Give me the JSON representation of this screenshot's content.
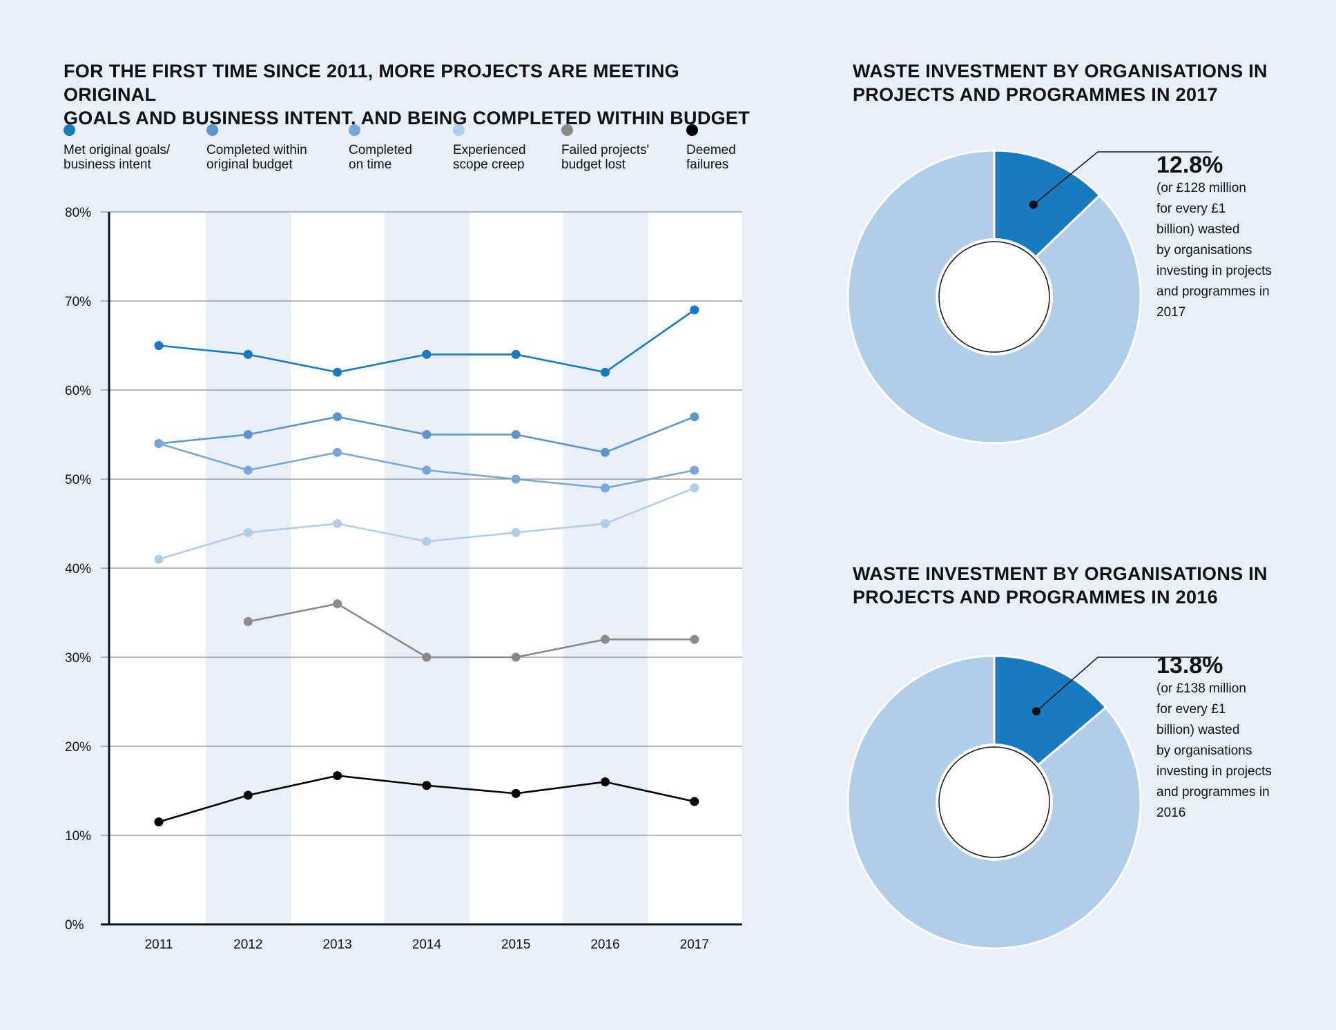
{
  "line_chart": {
    "title": "FOR THE FIRST TIME SINCE 2011, MORE PROJECTS ARE MEETING ORIGINAL\nGOALS AND BUSINESS INTENT, AND BEING COMPLETED WITHIN BUDGET"
  },
  "donut_2017": {
    "title": "WASTE INVESTMENT BY ORGANISATIONS IN\nPROJECTS AND PROGRAMMES IN 2017",
    "percent_label": "12.8%",
    "description": "(or £128 million\nfor every £1\nbillion) wasted\nby organisations\ninvesting in projects\nand programmes in\n2017"
  },
  "donut_2016": {
    "title": "WASTE INVESTMENT BY ORGANISATIONS IN\nPROJECTS AND PROGRAMMES IN 2016",
    "percent_label": "13.8%",
    "description": "(or £138 million\nfor every £1\nbillion) wasted\nby organisations\ninvesting in projects\nand programmes in\n2016"
  },
  "chart_data": [
    {
      "type": "line",
      "title": "FOR THE FIRST TIME SINCE 2011, MORE PROJECTS ARE MEETING ORIGINAL GOALS AND BUSINESS INTENT, AND BEING COMPLETED WITHIN BUDGET",
      "xlabel": "",
      "ylabel": "",
      "x": [
        "2011",
        "2012",
        "2013",
        "2014",
        "2015",
        "2016",
        "2017"
      ],
      "ylim": [
        0,
        80
      ],
      "yticks": [
        "0%",
        "10%",
        "20%",
        "30%",
        "40%",
        "50%",
        "60%",
        "70%",
        "80%"
      ],
      "grid": true,
      "legend_position": "top",
      "series": [
        {
          "name": "Met original goals/\nbusiness intent",
          "color": "#1a7abf",
          "values": [
            65,
            64,
            62,
            64,
            64,
            62,
            69
          ]
        },
        {
          "name": "Completed within\noriginal budget",
          "color": "#5b95cc",
          "values": [
            54,
            55,
            57,
            55,
            55,
            53,
            57
          ]
        },
        {
          "name": "Completed\non time",
          "color": "#7aa6d6",
          "values": [
            54,
            51,
            53,
            51,
            50,
            49,
            51
          ]
        },
        {
          "name": "Experienced\nscope creep",
          "color": "#b2cde9",
          "values": [
            41,
            44,
            45,
            43,
            44,
            45,
            49
          ]
        },
        {
          "name": "Failed projects'\nbudget lost",
          "color": "#8a8a8a",
          "values": [
            null,
            34,
            36,
            30,
            30,
            32,
            32
          ]
        },
        {
          "name": "Deemed\nfailures",
          "color": "#000000",
          "values": [
            11.5,
            14.5,
            16.7,
            15.6,
            14.7,
            16,
            13.8
          ]
        }
      ]
    },
    {
      "type": "pie",
      "title": "WASTE INVESTMENT BY ORGANISATIONS IN PROJECTS AND PROGRAMMES IN 2017",
      "values": [
        12.8,
        87.2
      ],
      "colors": [
        "#1a7abf",
        "#b2cde9"
      ]
    },
    {
      "type": "pie",
      "title": "WASTE INVESTMENT BY ORGANISATIONS IN PROJECTS AND PROGRAMMES IN 2016",
      "values": [
        13.8,
        86.2
      ],
      "colors": [
        "#1a7abf",
        "#b2cde9"
      ]
    }
  ]
}
